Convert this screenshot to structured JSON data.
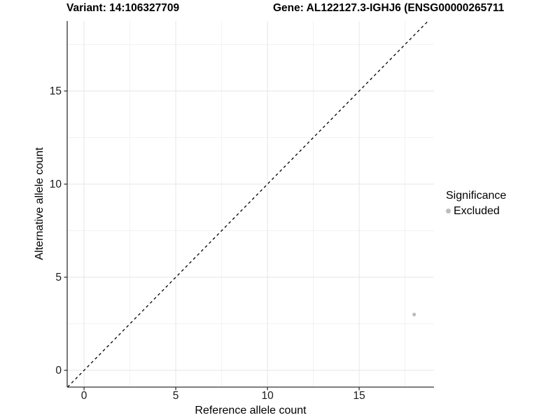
{
  "titles": {
    "variant": "Variant: 14:106327709",
    "gene": "Gene: AL122127.3-IGHJ6 (ENSG00000265711"
  },
  "chart_data": {
    "type": "scatter",
    "title_left": "Variant: 14:106327709",
    "title_right": "Gene: AL122127.3-IGHJ6 (ENSG00000265711",
    "xlabel": "Reference allele count",
    "ylabel": "Alternative allele count",
    "x_ticks": [
      0,
      5,
      10,
      15
    ],
    "y_ticks": [
      0,
      5,
      10,
      15
    ],
    "x_minor_ticks": [
      2.5,
      7.5,
      12.5,
      17.5
    ],
    "y_minor_ticks": [
      2.5,
      7.5,
      12.5,
      17.5
    ],
    "xlim": [
      -0.92,
      19.08
    ],
    "ylim": [
      -0.9,
      18.76
    ],
    "grid": true,
    "reference_line": {
      "type": "identity y=x",
      "style": "dashed",
      "color": "#000000"
    },
    "points": [
      {
        "x": 18,
        "y": 3,
        "significance": "Excluded",
        "color": "#bdbdbd"
      }
    ],
    "legend": {
      "title": "Significance",
      "position": "right",
      "entries": [
        {
          "label": "Excluded",
          "color": "#bdbdbd"
        }
      ]
    },
    "colors": {
      "axis_line": "#333333",
      "grid_major": "#e6e6e6",
      "grid_minor": "#f2f2f2",
      "point": "#bdbdbd",
      "text": "#000000"
    }
  }
}
